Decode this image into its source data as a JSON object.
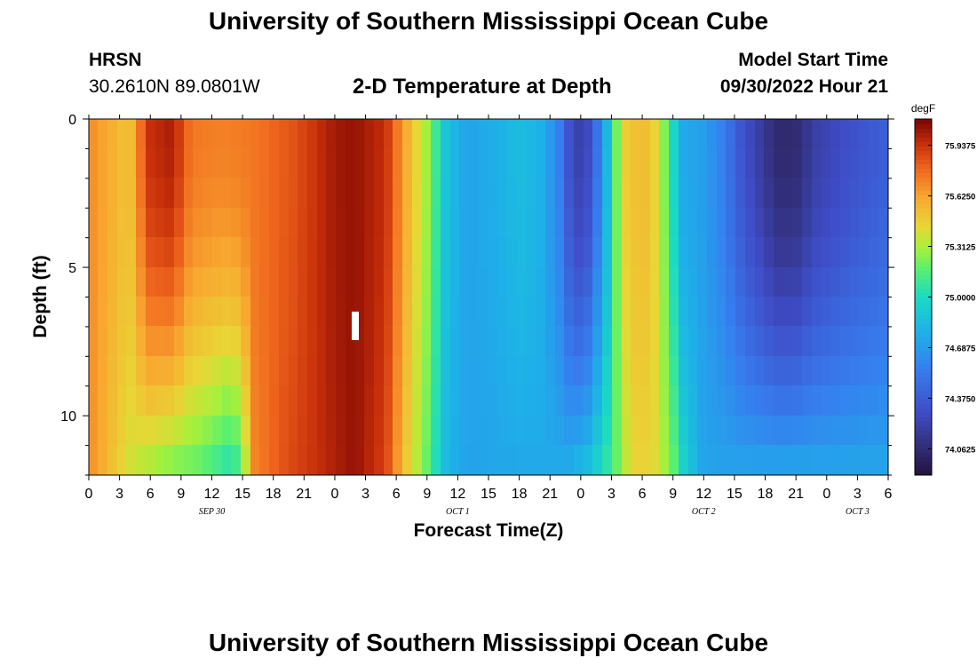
{
  "header": {
    "title": "University of Southern Mississippi Ocean Cube",
    "station_name": "HRSN",
    "station_coords": "30.2610N  89.0801W",
    "plot_title": "2-D Temperature at Depth",
    "model_label": "Model Start Time",
    "model_time": "09/30/2022 Hour 21"
  },
  "footer": {
    "title": "University of Southern Mississippi Ocean Cube"
  },
  "chart_data": {
    "type": "heatmap",
    "title": "2-D Temperature at Depth",
    "xlabel": "Forecast Time(Z)",
    "ylabel": "Depth (ft)",
    "x_range_hours": [
      0,
      78
    ],
    "x_tick_labels": [
      "0",
      "3",
      "6",
      "9",
      "12",
      "15",
      "18",
      "21",
      "0",
      "3",
      "6",
      "9",
      "12",
      "15",
      "18",
      "21",
      "0",
      "3",
      "6",
      "9",
      "12",
      "15",
      "18",
      "21",
      "0",
      "3",
      "6"
    ],
    "date_labels": [
      {
        "label": "SEP 30",
        "hour": 12
      },
      {
        "label": "OCT 1",
        "hour": 36
      },
      {
        "label": "OCT 2",
        "hour": 60
      },
      {
        "label": "OCT 3",
        "hour": 75
      }
    ],
    "y_range_ft": [
      0,
      12
    ],
    "y_tick_labels": [
      "0",
      "5",
      "10"
    ],
    "y_tick_values": [
      0,
      5,
      10
    ],
    "depths_ft": [
      0.5,
      1.5,
      2.5,
      3.5,
      4.5,
      5.5,
      6.5,
      7.5,
      8.5,
      9.5,
      10.5,
      11.5
    ],
    "colorbar": {
      "unit": "degF",
      "min": 73.9,
      "max": 76.1,
      "tick_labels": [
        "75.9375",
        "75.6250",
        "75.3125",
        "75.0000",
        "74.6875",
        "74.3750",
        "74.0625"
      ],
      "tick_values": [
        75.9375,
        75.625,
        75.3125,
        75.0,
        74.6875,
        74.375,
        74.0625
      ]
    },
    "surface_profile": [
      {
        "hour": 0,
        "value": 75.7
      },
      {
        "hour": 2,
        "value": 75.6
      },
      {
        "hour": 4,
        "value": 75.5
      },
      {
        "hour": 5,
        "value": 75.75
      },
      {
        "hour": 6,
        "value": 75.95
      },
      {
        "hour": 8,
        "value": 76.0
      },
      {
        "hour": 9,
        "value": 75.9
      },
      {
        "hour": 10,
        "value": 75.75
      },
      {
        "hour": 13,
        "value": 75.72
      },
      {
        "hour": 16,
        "value": 75.75
      },
      {
        "hour": 20,
        "value": 75.85
      },
      {
        "hour": 24,
        "value": 76.02
      },
      {
        "hour": 26,
        "value": 76.05
      },
      {
        "hour": 29,
        "value": 75.95
      },
      {
        "hour": 31,
        "value": 75.6
      },
      {
        "hour": 33,
        "value": 75.3
      },
      {
        "hour": 35,
        "value": 74.85
      },
      {
        "hour": 37,
        "value": 74.72
      },
      {
        "hour": 40,
        "value": 74.78
      },
      {
        "hour": 42,
        "value": 74.85
      },
      {
        "hour": 44,
        "value": 74.8
      },
      {
        "hour": 46,
        "value": 74.55
      },
      {
        "hour": 47,
        "value": 74.3
      },
      {
        "hour": 48,
        "value": 74.2
      },
      {
        "hour": 49,
        "value": 74.3
      },
      {
        "hour": 50,
        "value": 74.6
      },
      {
        "hour": 51,
        "value": 74.95
      },
      {
        "hour": 52,
        "value": 75.45
      },
      {
        "hour": 54,
        "value": 75.55
      },
      {
        "hour": 55,
        "value": 75.5
      },
      {
        "hour": 56,
        "value": 75.3
      },
      {
        "hour": 57,
        "value": 75.0
      },
      {
        "hour": 58,
        "value": 74.75
      },
      {
        "hour": 60,
        "value": 74.7
      },
      {
        "hour": 62,
        "value": 74.55
      },
      {
        "hour": 64,
        "value": 74.3
      },
      {
        "hour": 66,
        "value": 74.15
      },
      {
        "hour": 67,
        "value": 74.05
      },
      {
        "hour": 69,
        "value": 74.05
      },
      {
        "hour": 71,
        "value": 74.2
      },
      {
        "hour": 74,
        "value": 74.3
      },
      {
        "hour": 78,
        "value": 74.4
      }
    ],
    "bottom_profile": [
      {
        "hour": 0,
        "value": 75.7
      },
      {
        "hour": 2,
        "value": 75.55
      },
      {
        "hour": 4,
        "value": 75.4
      },
      {
        "hour": 7,
        "value": 75.3
      },
      {
        "hour": 9,
        "value": 75.25
      },
      {
        "hour": 11,
        "value": 75.2
      },
      {
        "hour": 12,
        "value": 75.15
      },
      {
        "hour": 14,
        "value": 75.05
      },
      {
        "hour": 15,
        "value": 75.2
      },
      {
        "hour": 16,
        "value": 75.7
      },
      {
        "hour": 19,
        "value": 75.85
      },
      {
        "hour": 24,
        "value": 76.0
      },
      {
        "hour": 26,
        "value": 76.05
      },
      {
        "hour": 29,
        "value": 75.9
      },
      {
        "hour": 31,
        "value": 75.5
      },
      {
        "hour": 33,
        "value": 75.2
      },
      {
        "hour": 35,
        "value": 74.8
      },
      {
        "hour": 37,
        "value": 74.72
      },
      {
        "hour": 42,
        "value": 74.75
      },
      {
        "hour": 47,
        "value": 74.75
      },
      {
        "hour": 49,
        "value": 74.85
      },
      {
        "hour": 51,
        "value": 75.1
      },
      {
        "hour": 53,
        "value": 75.45
      },
      {
        "hour": 55,
        "value": 75.45
      },
      {
        "hour": 57,
        "value": 75.2
      },
      {
        "hour": 58,
        "value": 74.95
      },
      {
        "hour": 60,
        "value": 74.72
      },
      {
        "hour": 64,
        "value": 74.7
      },
      {
        "hour": 68,
        "value": 74.7
      },
      {
        "hour": 78,
        "value": 74.72
      }
    ],
    "annotation": {
      "hour": 26,
      "depth_ft": 7
    }
  }
}
